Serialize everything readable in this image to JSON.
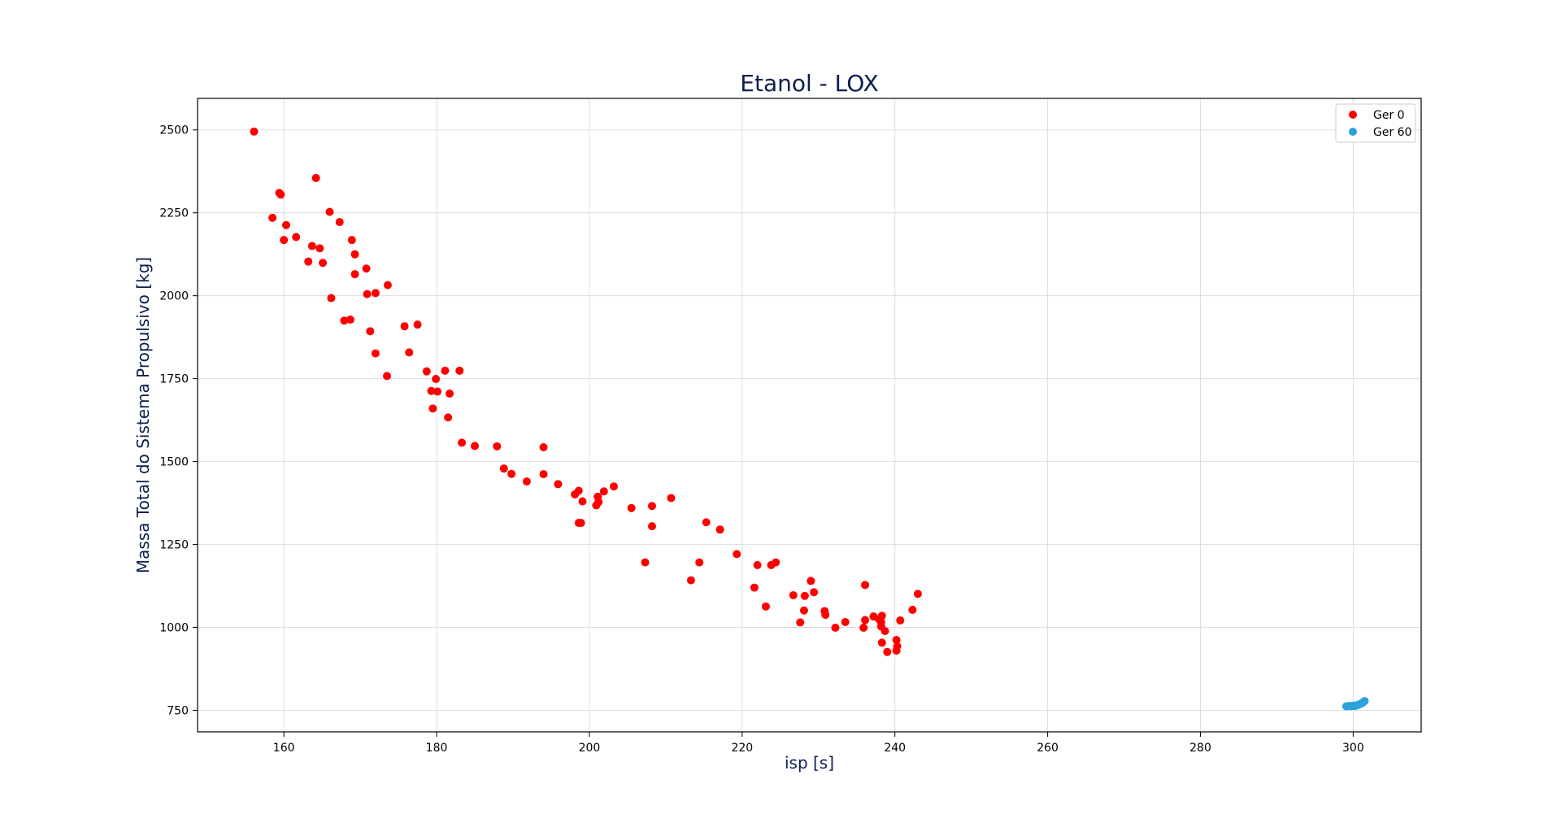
{
  "chart_data": {
    "type": "scatter",
    "title": "Etanol - LOX",
    "xlabel": "isp [s]",
    "ylabel": "Massa Total do Sistema Propulsivo [kg]",
    "xlim": [
      148.7,
      308.9
    ],
    "ylim": [
      685,
      2595
    ],
    "xticks": [
      160,
      180,
      200,
      220,
      240,
      260,
      280,
      300
    ],
    "yticks": [
      750,
      1000,
      1250,
      1500,
      1750,
      2000,
      2250,
      2500
    ],
    "grid": true,
    "legend": "top-right",
    "series": [
      {
        "name": "Ger 0",
        "color": "#ff0000",
        "points": [
          [
            156.1,
            2495
          ],
          [
            159.4,
            2310
          ],
          [
            159.6,
            2305
          ],
          [
            164.2,
            2355
          ],
          [
            158.5,
            2235
          ],
          [
            160.3,
            2213
          ],
          [
            160.0,
            2168
          ],
          [
            161.6,
            2177
          ],
          [
            166.0,
            2253
          ],
          [
            167.3,
            2222
          ],
          [
            163.7,
            2150
          ],
          [
            164.7,
            2143
          ],
          [
            163.2,
            2103
          ],
          [
            165.1,
            2099
          ],
          [
            168.9,
            2168
          ],
          [
            169.3,
            2125
          ],
          [
            169.3,
            2065
          ],
          [
            170.8,
            2082
          ],
          [
            173.6,
            2032
          ],
          [
            166.2,
            1993
          ],
          [
            170.9,
            2005
          ],
          [
            172.0,
            2008
          ],
          [
            167.9,
            1925
          ],
          [
            168.7,
            1928
          ],
          [
            171.3,
            1893
          ],
          [
            175.8,
            1908
          ],
          [
            177.5,
            1913
          ],
          [
            172.0,
            1826
          ],
          [
            176.4,
            1829
          ],
          [
            173.5,
            1758
          ],
          [
            178.7,
            1772
          ],
          [
            181.1,
            1774
          ],
          [
            183.0,
            1774
          ],
          [
            179.9,
            1749
          ],
          [
            179.3,
            1713
          ],
          [
            180.1,
            1711
          ],
          [
            181.7,
            1705
          ],
          [
            179.5,
            1660
          ],
          [
            181.5,
            1633
          ],
          [
            183.3,
            1557
          ],
          [
            185.0,
            1547
          ],
          [
            187.9,
            1546
          ],
          [
            194.0,
            1543
          ],
          [
            188.8,
            1479
          ],
          [
            189.8,
            1463
          ],
          [
            194.0,
            1462
          ],
          [
            191.8,
            1440
          ],
          [
            195.9,
            1432
          ],
          [
            198.1,
            1401
          ],
          [
            198.6,
            1412
          ],
          [
            199.1,
            1380
          ],
          [
            201.1,
            1394
          ],
          [
            201.9,
            1410
          ],
          [
            203.2,
            1425
          ],
          [
            200.9,
            1368
          ],
          [
            201.2,
            1378
          ],
          [
            205.5,
            1360
          ],
          [
            208.2,
            1366
          ],
          [
            210.7,
            1390
          ],
          [
            198.6,
            1315
          ],
          [
            198.9,
            1315
          ],
          [
            208.2,
            1305
          ],
          [
            215.3,
            1317
          ],
          [
            217.1,
            1295
          ],
          [
            207.3,
            1196
          ],
          [
            214.4,
            1196
          ],
          [
            219.3,
            1221
          ],
          [
            222.0,
            1188
          ],
          [
            223.8,
            1188
          ],
          [
            224.4,
            1196
          ],
          [
            213.3,
            1142
          ],
          [
            221.6,
            1120
          ],
          [
            226.7,
            1097
          ],
          [
            228.2,
            1095
          ],
          [
            229.4,
            1106
          ],
          [
            229.0,
            1140
          ],
          [
            236.1,
            1128
          ],
          [
            223.1,
            1063
          ],
          [
            228.1,
            1051
          ],
          [
            230.8,
            1049
          ],
          [
            230.9,
            1038
          ],
          [
            237.2,
            1033
          ],
          [
            238.3,
            1035
          ],
          [
            227.6,
            1015
          ],
          [
            233.5,
            1016
          ],
          [
            236.1,
            1022
          ],
          [
            237.9,
            1025
          ],
          [
            238.2,
            1016
          ],
          [
            240.7,
            1021
          ],
          [
            243.0,
            1101
          ],
          [
            242.3,
            1053
          ],
          [
            232.2,
            999
          ],
          [
            235.9,
            999
          ],
          [
            238.2,
            1003
          ],
          [
            238.7,
            989
          ],
          [
            238.3,
            954
          ],
          [
            240.2,
            962
          ],
          [
            240.3,
            943
          ],
          [
            239.0,
            926
          ],
          [
            240.2,
            930
          ]
        ]
      },
      {
        "name": "Ger 60",
        "color": "#29a3dc",
        "points": [
          [
            299.1,
            762
          ],
          [
            299.4,
            763
          ],
          [
            299.7,
            762
          ],
          [
            300.0,
            764
          ],
          [
            300.2,
            763
          ],
          [
            300.5,
            765
          ],
          [
            300.7,
            767
          ],
          [
            300.9,
            769
          ],
          [
            301.1,
            771
          ],
          [
            301.3,
            774
          ],
          [
            301.5,
            778
          ]
        ]
      }
    ]
  }
}
